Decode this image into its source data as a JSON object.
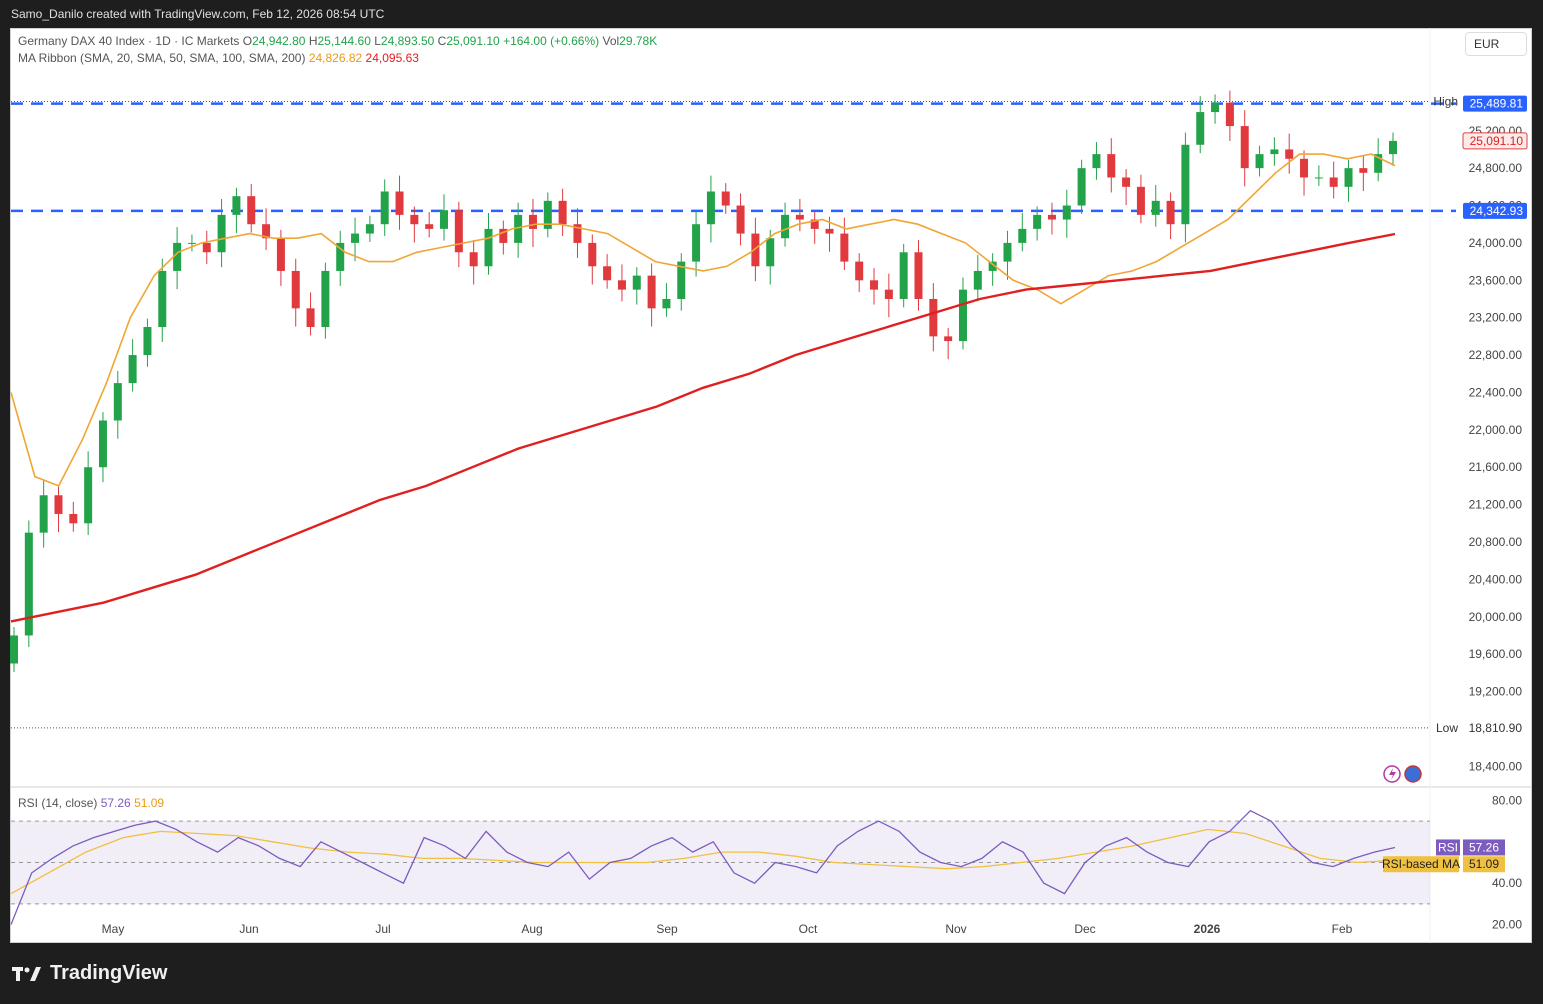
{
  "header": {
    "caption": "Samo_Danilo created with TradingView.com, Feb 12, 2026 08:54 UTC"
  },
  "footer": {
    "brand": "TradingView"
  },
  "currency": "EUR",
  "legend": {
    "symbol": "Germany DAX 40 Index · 1D · IC Markets",
    "open_label": "O",
    "open": "24,942.80",
    "high_label": "H",
    "high": "25,144.60",
    "low_label": "L",
    "low": "24,893.50",
    "close_label": "C",
    "close": "25,091.10",
    "change": "+164.00 (+0.66%)",
    "vol_label": "Vol",
    "vol": "29.78K",
    "ma_label": "MA Ribbon (SMA, 20, SMA, 50, SMA, 100, SMA, 200)",
    "ma20": "24,826.82",
    "ma200": "24,095.63"
  },
  "rsi_legend": {
    "label": "RSI (14, close)",
    "rsi": "57.26",
    "rsi_ma": "51.09"
  },
  "colors": {
    "up": "#22a34a",
    "down": "#e0393e",
    "ma20": "#f0a634",
    "ma200": "#e02020",
    "level": "#2962ff",
    "rsi": "#7c5cbf",
    "rsi_ma": "#f0c040"
  },
  "chart_data": {
    "type": "candlestick",
    "x_labels": [
      "May",
      "Jun",
      "Jul",
      "Aug",
      "Sep",
      "Oct",
      "Nov",
      "Dec",
      "2026",
      "Feb"
    ],
    "y_ticks": [
      "25,200.00",
      "24,800.00",
      "24,400.00",
      "24,000.00",
      "23,600.00",
      "23,200.00",
      "22,800.00",
      "22,400.00",
      "22,000.00",
      "21,600.00",
      "21,200.00",
      "20,800.00",
      "20,400.00",
      "20,000.00",
      "19,600.00",
      "19,200.00",
      "18,400.00"
    ],
    "ylim": [
      18200,
      25850
    ],
    "high_label": "High",
    "high_value": "25,512.70",
    "low_label": "Low",
    "low_value": "18,810.90",
    "last_price": "25,091.10",
    "resistance": "25,489.81",
    "support": "24,342.93",
    "resistance_value": 25489.81,
    "support_value": 24342.93,
    "close_series": [
      19800,
      20900,
      21300,
      21100,
      21000,
      21600,
      22100,
      22500,
      22800,
      23100,
      23700,
      24000,
      24000,
      23900,
      24300,
      24500,
      24200,
      24050,
      23700,
      23300,
      23100,
      23700,
      24000,
      24100,
      24200,
      24550,
      24300,
      24200,
      24150,
      24350,
      23900,
      23750,
      24150,
      24000,
      24300,
      24150,
      24450,
      24200,
      24000,
      23750,
      23600,
      23500,
      23650,
      23300,
      23400,
      23800,
      24200,
      24550,
      24400,
      24100,
      23750,
      24050,
      24300,
      24250,
      24150,
      24100,
      23800,
      23600,
      23500,
      23400,
      23900,
      23400,
      23000,
      22950,
      23500,
      23700,
      23800,
      24000,
      24150,
      24300,
      24250,
      24400,
      24800,
      24950,
      24700,
      24600,
      24300,
      24450,
      24200,
      25050,
      25400,
      25500,
      25250,
      24800,
      24950,
      25000,
      24900,
      24700,
      24700,
      24600,
      24800,
      24750,
      24950,
      25091.1
    ],
    "ma20_series": [
      22400,
      21500,
      21400,
      21900,
      22500,
      23200,
      23650,
      23900,
      24000,
      24050,
      24100,
      24050,
      24050,
      24100,
      23900,
      23800,
      23800,
      23900,
      23950,
      24000,
      24050,
      24150,
      24200,
      24200,
      24150,
      24100,
      23950,
      23800,
      23750,
      23700,
      23750,
      23900,
      24100,
      24200,
      24250,
      24150,
      24200,
      24250,
      24200,
      24100,
      24000,
      23800,
      23600,
      23500,
      23350,
      23500,
      23650,
      23700,
      23800,
      23950,
      24100,
      24250,
      24500,
      24750,
      24950,
      24950,
      24900,
      24950,
      24826.82
    ],
    "ma200_series": [
      19950,
      20050,
      20150,
      20300,
      20450,
      20650,
      20850,
      21050,
      21250,
      21400,
      21600,
      21800,
      21950,
      22100,
      22250,
      22450,
      22600,
      22800,
      22950,
      23100,
      23250,
      23400,
      23500,
      23550,
      23600,
      23650,
      23700,
      23800,
      23900,
      24000,
      24095.63
    ],
    "rsi": {
      "levels": [
        70,
        50,
        30
      ],
      "y_ticks": [
        "80.00",
        "40.00",
        "20.00"
      ],
      "ylim": [
        15,
        85
      ],
      "rsi_label": "RSI",
      "rsi_value": "57.26",
      "ma_label": "RSI-based MA",
      "ma_value": "51.09",
      "rsi_series": [
        20,
        45,
        52,
        58,
        62,
        65,
        68,
        70,
        66,
        60,
        55,
        62,
        58,
        52,
        48,
        60,
        55,
        50,
        45,
        40,
        62,
        58,
        52,
        65,
        55,
        50,
        48,
        55,
        42,
        50,
        52,
        58,
        62,
        55,
        60,
        45,
        40,
        50,
        48,
        45,
        58,
        65,
        70,
        65,
        55,
        50,
        48,
        52,
        60,
        55,
        40,
        35,
        50,
        58,
        62,
        55,
        50,
        48,
        60,
        65,
        75,
        70,
        58,
        50,
        48,
        52,
        55,
        57.26
      ],
      "rsi_ma_series": [
        35,
        45,
        55,
        62,
        65,
        64,
        63,
        60,
        57,
        55,
        54,
        52,
        52,
        51,
        50,
        50,
        50,
        50,
        52,
        55,
        55,
        53,
        50,
        49,
        48,
        47,
        48,
        50,
        52,
        55,
        58,
        62,
        66,
        64,
        58,
        52,
        50,
        51.09
      ]
    }
  }
}
